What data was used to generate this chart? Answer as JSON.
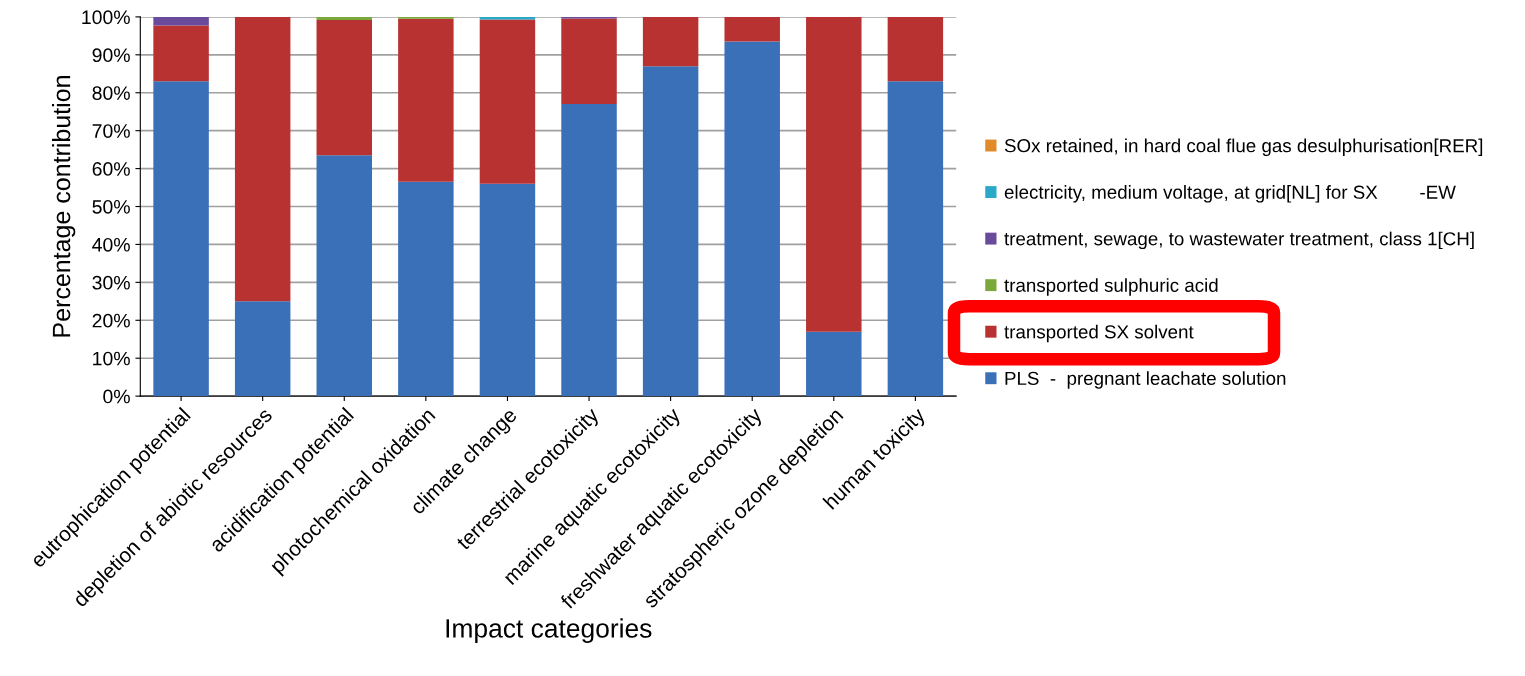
{
  "chart_data": {
    "type": "bar",
    "stacked": true,
    "xlabel": "Impact categories",
    "ylabel": "Percentage contribution",
    "categories": [
      "eutrophication potential",
      "depletion of abiotic resources",
      "acidification potential",
      "photochemical oxidation",
      "climate change",
      "terrestrial ecotoxicity",
      "marine aquatic ecotoxicity",
      "freshwater aquatic ecotoxicity",
      "stratospheric ozone depletion",
      "human toxicity"
    ],
    "series": [
      {
        "name": "PLS  -  pregnant leachate solution",
        "color": "#3a70b8",
        "values": [
          83,
          25,
          63.5,
          56.5,
          56,
          77,
          87,
          93.5,
          17,
          83
        ]
      },
      {
        "name": "transported SX solvent",
        "color": "#b83232",
        "values": [
          14.7,
          75,
          35.7,
          43,
          43.3,
          22.6,
          13,
          6.5,
          83,
          17
        ]
      },
      {
        "name": "transported sulphuric acid",
        "color": "#7aa83a",
        "values": [
          0,
          0,
          0.8,
          0.5,
          0,
          0,
          0,
          0,
          0,
          0
        ]
      },
      {
        "name": "treatment, sewage, to wastewater treatment, class 1[CH]",
        "color": "#6a4a9a",
        "values": [
          2.3,
          0,
          0,
          0,
          0,
          0.4,
          0,
          0,
          0,
          0
        ]
      },
      {
        "name": "electricity, medium voltage, at grid[NL] for SX        -EW",
        "color": "#2aa8c8",
        "values": [
          0,
          0,
          0,
          0,
          0.7,
          0,
          0,
          0,
          0,
          0
        ]
      },
      {
        "name": "SOx retained, in hard coal flue gas desulphurisation[RER]",
        "color": "#e08a2a",
        "values": [
          0,
          0,
          0,
          0,
          0,
          0,
          0,
          0,
          0,
          0
        ]
      }
    ],
    "ylim": [
      0,
      100
    ],
    "yticks": [
      {
        "value": 0,
        "label": "0%"
      },
      {
        "value": 10,
        "label": "10%"
      },
      {
        "value": 20,
        "label": "20%"
      },
      {
        "value": 30,
        "label": "30%"
      },
      {
        "value": 40,
        "label": "40%"
      },
      {
        "value": 50,
        "label": "50%"
      },
      {
        "value": 60,
        "label": "60%"
      },
      {
        "value": 70,
        "label": "70%"
      },
      {
        "value": 80,
        "label": "80%"
      },
      {
        "value": 90,
        "label": "90%"
      },
      {
        "value": 100,
        "label": "100%"
      }
    ],
    "grid": "y",
    "legend": "right"
  }
}
